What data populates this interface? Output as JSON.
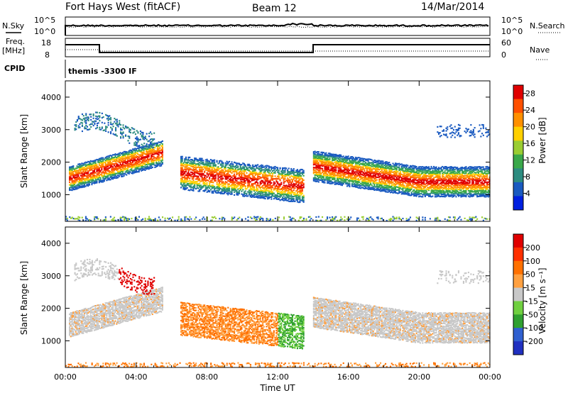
{
  "header": {
    "title": "Fort Hays West (fitACF)",
    "beam": "Beam 12",
    "date": "14/Mar/2014"
  },
  "strips": {
    "nsky_label": "N.Sky",
    "nsearch_label": "N.Search",
    "noise_ticks": [
      "10^5",
      "10^0"
    ],
    "freq_label_1": "Freq.",
    "freq_label_2": "[MHz]",
    "freq_ticks": [
      "18",
      "8"
    ],
    "nave_label": "Nave",
    "nave_ticks": [
      "60",
      "0"
    ],
    "cpid_label": "CPID",
    "cpid_text": "themis -3300 IF"
  },
  "chart_data": [
    {
      "type": "heatmap",
      "title": "",
      "xlabel": "Time UT",
      "ylabel": "Slant Range [km]",
      "x_ticks": [
        "00:00",
        "04:00",
        "08:00",
        "12:00",
        "16:00",
        "20:00",
        "00:00"
      ],
      "xlim_hours": [
        0,
        24
      ],
      "y_ticks": [
        "1000",
        "2000",
        "3000",
        "4000"
      ],
      "ylim_km": [
        180,
        4500
      ],
      "colorbar": {
        "label": "Power [dB]",
        "ticks": [
          "4",
          "8",
          "12",
          "16",
          "20",
          "24",
          "28"
        ],
        "range": [
          0,
          30
        ],
        "colors": [
          "#0020e0",
          "#1a5ac0",
          "#2d8c80",
          "#3aa84a",
          "#9acd32",
          "#ffd000",
          "#ff9000",
          "#ff5000",
          "#e00000"
        ]
      }
    },
    {
      "type": "heatmap",
      "title": "",
      "xlabel": "Time UT",
      "ylabel": "Slant Range [km]",
      "x_ticks": [
        "00:00",
        "04:00",
        "08:00",
        "12:00",
        "16:00",
        "20:00",
        "00:00"
      ],
      "xlim_hours": [
        0,
        24
      ],
      "y_ticks": [
        "1000",
        "2000",
        "3000",
        "4000"
      ],
      "ylim_km": [
        180,
        4500
      ],
      "colorbar": {
        "label": "Velocity [m s⁻¹]",
        "ticks": [
          "200",
          "100",
          "50",
          "15",
          "-15",
          "-50",
          "-100",
          "-200"
        ],
        "colors": [
          "#2030c0",
          "#3060d0",
          "#30a030",
          "#70d040",
          "#c8c8c8",
          "#ffa040",
          "#ff7000",
          "#ff3000",
          "#e00000"
        ]
      }
    }
  ]
}
